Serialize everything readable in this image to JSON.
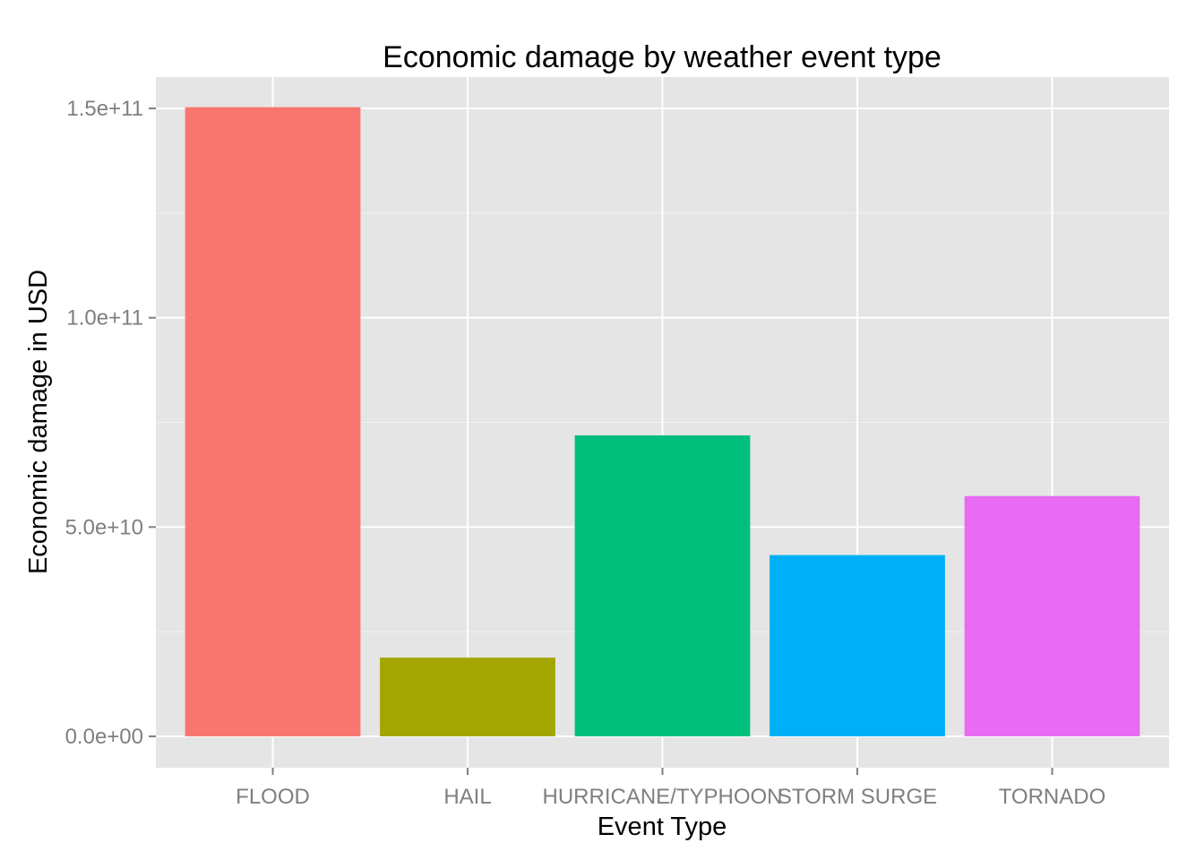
{
  "chart_data": {
    "type": "bar",
    "title": "Economic damage by weather event type",
    "xlabel": "Event Type",
    "ylabel": "Economic damage in USD",
    "categories": [
      "FLOOD",
      "HAIL",
      "HURRICANE/TYPHOON",
      "STORM SURGE",
      "TORNADO"
    ],
    "values": [
      150300000000,
      18800000000,
      71900000000,
      43300000000,
      57400000000
    ],
    "colors": [
      "#F8766D",
      "#A3A500",
      "#00BF7D",
      "#00B0F6",
      "#E76BF3"
    ],
    "ylim": [
      -7500000000,
      157500000000
    ],
    "yticks": [
      0,
      50000000000,
      100000000000,
      150000000000
    ],
    "ytick_labels": [
      "0.0e+00",
      "5.0e+10",
      "1.0e+11",
      "1.5e+11"
    ],
    "grid": true,
    "legend": "none",
    "background_color": "#E5E5E5",
    "grid_color": "#FFFFFF"
  }
}
